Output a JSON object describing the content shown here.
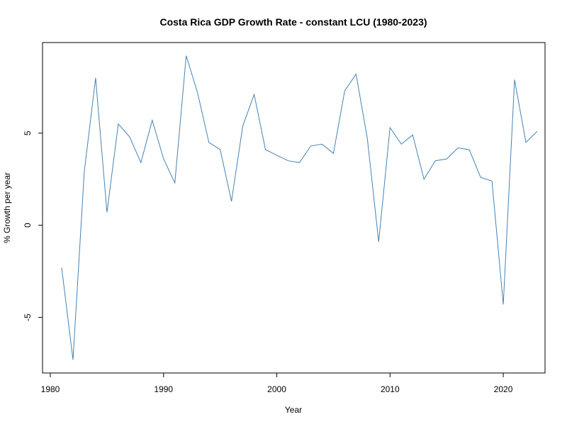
{
  "chart_data": {
    "type": "line",
    "title": "Costa Rica GDP Growth Rate - constant LCU (1980-2023)",
    "xlabel": "Year",
    "ylabel": "% Growth per year",
    "xlim": [
      1980,
      2023
    ],
    "ylim": [
      -7.4,
      9.3
    ],
    "xticks": [
      1980,
      1990,
      2000,
      2010,
      2020
    ],
    "yticks": [
      -5,
      0,
      5
    ],
    "grid": false,
    "line_color": "#4682b4",
    "series": [
      {
        "x": [
          1981,
          1982,
          1983,
          1984,
          1985,
          1986,
          1987,
          1988,
          1989,
          1990,
          1991,
          1992,
          1993,
          1994,
          1995,
          1996,
          1997,
          1998,
          1999,
          2000,
          2001,
          2002,
          2003,
          2004,
          2005,
          2006,
          2007,
          2008,
          2009,
          2010,
          2011,
          2012,
          2013,
          2014,
          2015,
          2016,
          2017,
          2018,
          2019,
          2020,
          2021,
          2022,
          2023
        ],
        "values": [
          -2.3,
          -7.3,
          2.9,
          8.0,
          0.7,
          5.5,
          4.8,
          3.4,
          5.7,
          3.6,
          2.3,
          9.2,
          7.2,
          4.5,
          4.1,
          1.3,
          5.4,
          7.1,
          4.1,
          3.8,
          3.5,
          3.4,
          4.3,
          4.4,
          3.9,
          7.3,
          8.2,
          4.7,
          -0.9,
          5.3,
          4.4,
          4.9,
          2.5,
          3.5,
          3.6,
          4.2,
          4.1,
          2.6,
          2.4,
          -4.3,
          7.9,
          4.5,
          5.1
        ]
      }
    ]
  }
}
